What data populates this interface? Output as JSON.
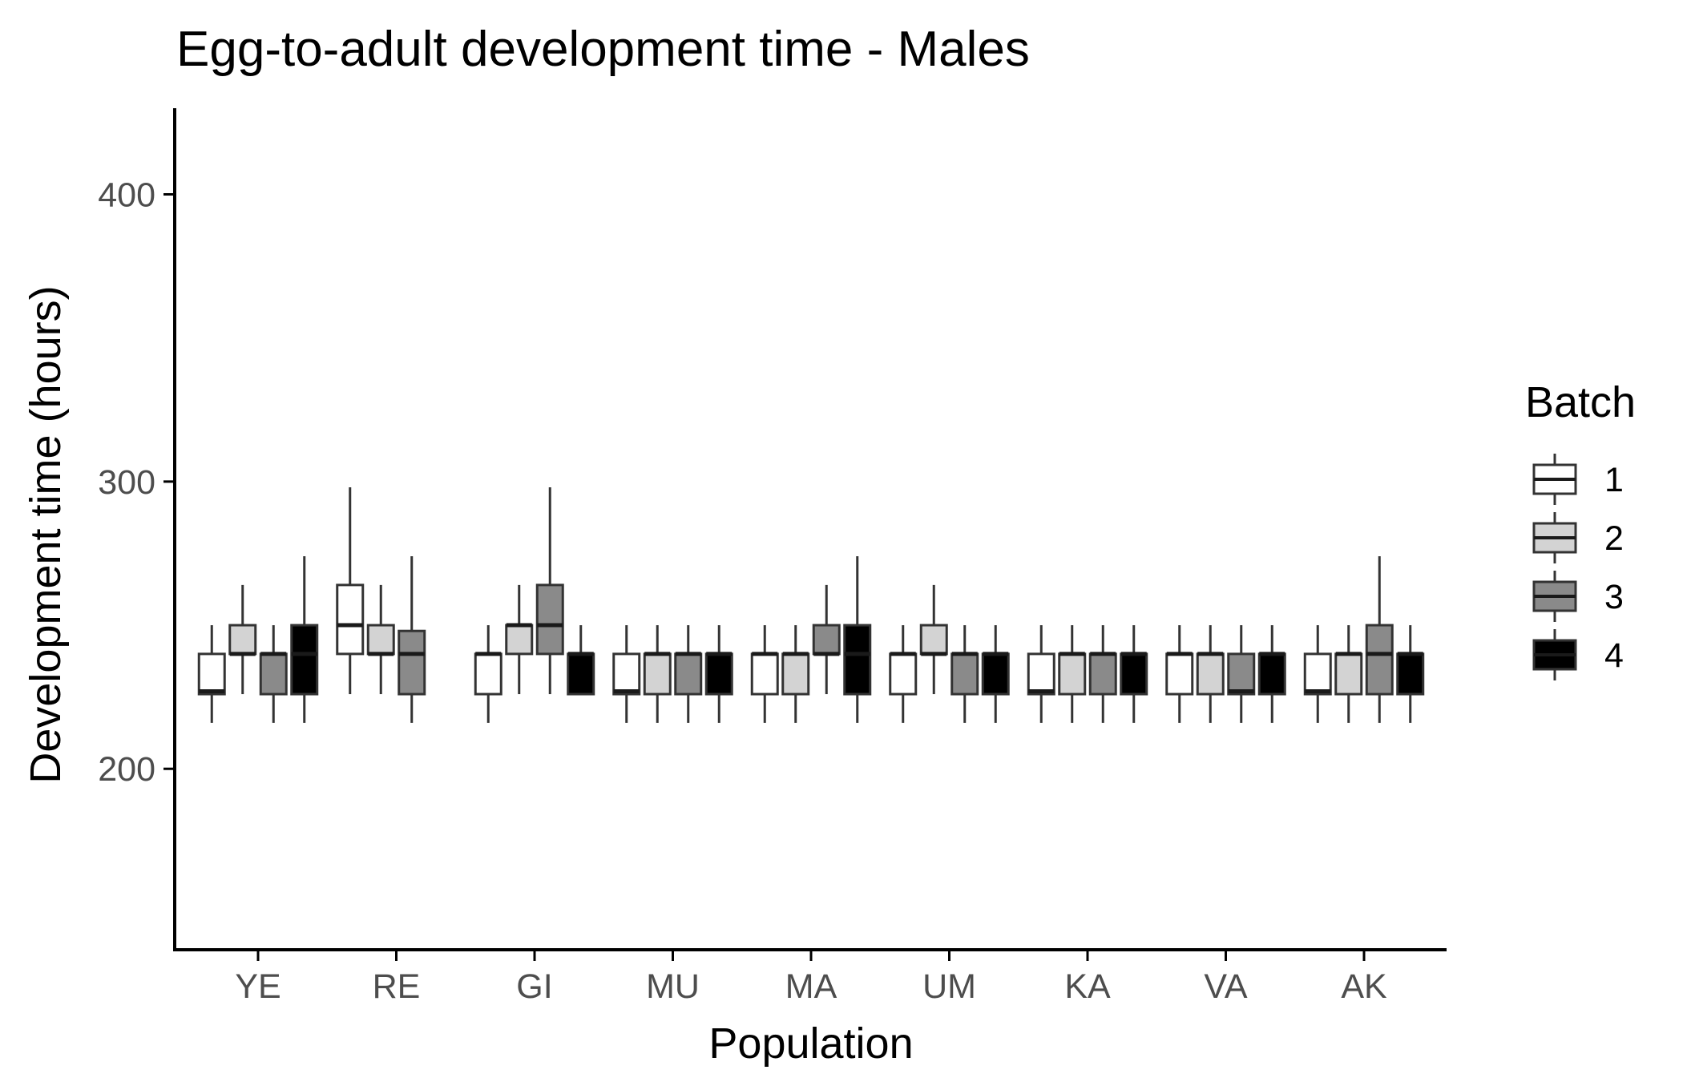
{
  "chart_data": {
    "type": "boxplot",
    "title": "Egg-to-adult development time - Males",
    "xlabel": "Population",
    "ylabel": "Development time (hours)",
    "ylim": [
      137,
      430
    ],
    "yticks": [
      200,
      300,
      400
    ],
    "categories": [
      "YE",
      "RE",
      "GI",
      "MU",
      "MA",
      "UM",
      "KA",
      "VA",
      "AK"
    ],
    "legend": {
      "title": "Batch",
      "position": "right"
    },
    "grid": false,
    "series": [
      {
        "name": "1",
        "color": "#ffffff",
        "boxes": [
          {
            "min": 216,
            "q1": 226,
            "median": 227,
            "q3": 240,
            "max": 250
          },
          {
            "min": 226,
            "q1": 240,
            "median": 250,
            "q3": 264,
            "max": 298
          },
          {
            "min": 216,
            "q1": 226,
            "median": 240,
            "q3": 240,
            "max": 250
          },
          {
            "min": 216,
            "q1": 226,
            "median": 227,
            "q3": 240,
            "max": 250
          },
          {
            "min": 216,
            "q1": 226,
            "median": 240,
            "q3": 240,
            "max": 250
          },
          {
            "min": 216,
            "q1": 226,
            "median": 240,
            "q3": 240,
            "max": 250
          },
          {
            "min": 216,
            "q1": 226,
            "median": 227,
            "q3": 240,
            "max": 250
          },
          {
            "min": 216,
            "q1": 226,
            "median": 240,
            "q3": 240,
            "max": 250
          },
          {
            "min": 216,
            "q1": 226,
            "median": 227,
            "q3": 240,
            "max": 250
          }
        ]
      },
      {
        "name": "2",
        "color": "#d3d3d3",
        "boxes": [
          {
            "min": 226,
            "q1": 240,
            "median": 240,
            "q3": 250,
            "max": 264
          },
          {
            "min": 226,
            "q1": 240,
            "median": 240,
            "q3": 250,
            "max": 264
          },
          {
            "min": 226,
            "q1": 240,
            "median": 250,
            "q3": 250,
            "max": 264
          },
          {
            "min": 216,
            "q1": 226,
            "median": 240,
            "q3": 240,
            "max": 250
          },
          {
            "min": 216,
            "q1": 226,
            "median": 240,
            "q3": 240,
            "max": 250
          },
          {
            "min": 226,
            "q1": 240,
            "median": 240,
            "q3": 250,
            "max": 264
          },
          {
            "min": 216,
            "q1": 226,
            "median": 240,
            "q3": 240,
            "max": 250
          },
          {
            "min": 216,
            "q1": 226,
            "median": 240,
            "q3": 240,
            "max": 250
          },
          {
            "min": 216,
            "q1": 226,
            "median": 240,
            "q3": 240,
            "max": 250
          }
        ]
      },
      {
        "name": "3",
        "color": "#8a8a8a",
        "boxes": [
          {
            "min": 216,
            "q1": 226,
            "median": 240,
            "q3": 240,
            "max": 250
          },
          {
            "min": 216,
            "q1": 226,
            "median": 240,
            "q3": 248,
            "max": 274
          },
          {
            "min": 226,
            "q1": 240,
            "median": 250,
            "q3": 264,
            "max": 298
          },
          {
            "min": 216,
            "q1": 226,
            "median": 240,
            "q3": 240,
            "max": 250
          },
          {
            "min": 226,
            "q1": 240,
            "median": 240,
            "q3": 250,
            "max": 264
          },
          {
            "min": 216,
            "q1": 226,
            "median": 240,
            "q3": 240,
            "max": 250
          },
          {
            "min": 216,
            "q1": 226,
            "median": 240,
            "q3": 240,
            "max": 250
          },
          {
            "min": 216,
            "q1": 226,
            "median": 227,
            "q3": 240,
            "max": 250
          },
          {
            "min": 216,
            "q1": 226,
            "median": 240,
            "q3": 250,
            "max": 274
          }
        ]
      },
      {
        "name": "4",
        "color": "#000000",
        "boxes": [
          {
            "min": 216,
            "q1": 226,
            "median": 240,
            "q3": 250,
            "max": 274
          },
          null,
          {
            "min": 226,
            "q1": 226,
            "median": 240,
            "q3": 240,
            "max": 250
          },
          {
            "min": 216,
            "q1": 226,
            "median": 240,
            "q3": 240,
            "max": 250
          },
          {
            "min": 216,
            "q1": 226,
            "median": 240,
            "q3": 250,
            "max": 274
          },
          {
            "min": 216,
            "q1": 226,
            "median": 240,
            "q3": 240,
            "max": 250
          },
          {
            "min": 216,
            "q1": 226,
            "median": 240,
            "q3": 240,
            "max": 250
          },
          {
            "min": 216,
            "q1": 226,
            "median": 240,
            "q3": 240,
            "max": 250
          },
          {
            "min": 216,
            "q1": 226,
            "median": 240,
            "q3": 240,
            "max": 250
          }
        ]
      }
    ],
    "colors": {
      "axis": "#000000",
      "tick_label": "#4d4d4d",
      "box_outline": "#333333",
      "median_on_light": "#1a1a1a",
      "median_on_dark": "#1a1a1a"
    }
  }
}
